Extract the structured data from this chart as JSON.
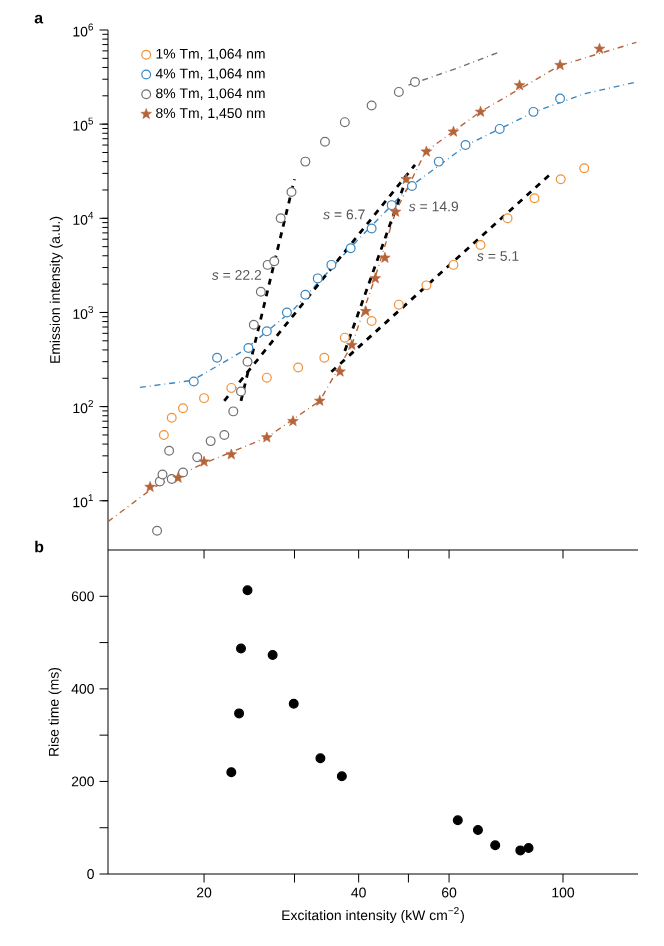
{
  "chart_data": [
    {
      "type": "scatter",
      "ylabel": "Emission intensity (a.u.)",
      "log": "xy",
      "xlim": [
        13,
        140
      ],
      "ylim": [
        3,
        1000000
      ],
      "tick_labels": "y",
      "legend": "top left",
      "xticks": [
        {
          "value": 20,
          "label": null
        },
        {
          "value": 30,
          "label": null
        },
        {
          "value": 40,
          "label": null
        },
        {
          "value": 50,
          "label": null
        },
        {
          "value": 60,
          "label": null
        },
        {
          "value": 100,
          "label": null
        }
      ],
      "yticks": [
        {
          "value": 10,
          "label": "10$^{1}$"
        },
        {
          "value": 100,
          "label": "10$^{2}$"
        },
        {
          "value": 1000,
          "label": "10$^{3}$"
        },
        {
          "value": 10000,
          "label": "10$^{4}$"
        },
        {
          "value": 100000,
          "label": "10$^{5}$"
        },
        {
          "value": 1000000,
          "label": "10$^{6}$"
        }
      ],
      "series": [
        {
          "name": "1% Tm, 1,064 nm",
          "type": "scatter",
          "marker": "circle",
          "color": "#f0913a",
          "x": [
            16.7,
            17.3,
            18.2,
            20,
            22.6,
            26.5,
            30.5,
            34.3,
            37.6,
            42.4,
            47.9,
            54.2,
            61.2,
            69.1,
            78,
            88,
            99,
            110
          ],
          "values": [
            50,
            76,
            96,
            123,
            158,
            203,
            260,
            330,
            540,
            810,
            1210,
            1940,
            3200,
            5200,
            10000,
            16300,
            26000,
            34000
          ]
        },
        {
          "name": "4% Tm, 1,064 nm",
          "type": "scatter",
          "marker": "circle",
          "color": "#3a86c0",
          "x": [
            19.1,
            21.2,
            24.4,
            26.5,
            29,
            31.5,
            33.3,
            35.4,
            38.6,
            42.4,
            46.4,
            50.8,
            57.3,
            64.6,
            75.3,
            87.6,
            98.7
          ],
          "values": [
            185,
            330,
            420,
            630,
            1000,
            1540,
            2300,
            3200,
            4800,
            7800,
            13800,
            22000,
            40000,
            60000,
            89000,
            135000,
            187000
          ]
        },
        {
          "name": "8% Tm, 1,064 nm",
          "type": "scatter",
          "marker": "circle",
          "color": "#707070",
          "x": [
            16.2,
            16.4,
            16.6,
            17.1,
            17.3,
            18.2,
            19.4,
            20.6,
            21.9,
            22.8,
            23.6,
            24.3,
            25,
            25.8,
            26.6,
            27.4,
            28.2,
            29.6,
            31.5,
            34.4,
            37.6,
            42.4,
            47.9,
            51.5
          ],
          "values": [
            4.8,
            16,
            19,
            34,
            17,
            20,
            29,
            43,
            50,
            89,
            145,
            300,
            740,
            1660,
            3200,
            3500,
            10000,
            19000,
            40000,
            65000,
            105000,
            158000,
            220000,
            280000
          ]
        },
        {
          "name": "8% Tm, 1,450 nm",
          "type": "scatter",
          "marker": "star",
          "color": "#b5643a",
          "x": [
            15.7,
            17.8,
            20,
            22.6,
            26.5,
            29.8,
            33.6,
            36.8,
            38.8,
            41.3,
            43.1,
            45,
            47.2,
            49.5,
            54.2,
            61.2,
            69.1,
            82.3,
            98.7,
            117.8
          ],
          "values": [
            14,
            17.5,
            26,
            31,
            47,
            70,
            115,
            235,
            450,
            1030,
            2300,
            3800,
            11700,
            26000,
            51000,
            83000,
            135000,
            258000,
            423000,
            630000
          ]
        },
        {
          "type": "line",
          "line_style": "dashdot",
          "color": "#707070",
          "x": [
            50,
            62,
            75
          ],
          "values": [
            260000,
            390000,
            580000
          ]
        },
        {
          "type": "line",
          "line_style": "dashdot",
          "color": "#3a86c0",
          "x": [
            15,
            19,
            24,
            30,
            38,
            50,
            65,
            88,
            110,
            139
          ],
          "values": [
            160,
            190,
            400,
            1100,
            4500,
            21000,
            60000,
            135000,
            210000,
            280000
          ]
        },
        {
          "type": "line",
          "line_style": "dashdot",
          "color": "#b5643a",
          "x": [
            13,
            16,
            20,
            26.5,
            33.6,
            38.8,
            43,
            47.2,
            54,
            69,
            98.7,
            139
          ],
          "values": [
            6,
            14,
            25,
            47,
            115,
            450,
            2300,
            11700,
            51000,
            135000,
            420000,
            740000
          ]
        },
        {
          "type": "line",
          "line_style": "dashed",
          "color": "#000000",
          "x": [
            23.6,
            30
          ],
          "values": [
            115,
            26000
          ]
        },
        {
          "type": "line",
          "line_style": "dashed",
          "color": "#000000",
          "x": [
            21.9,
            51.5
          ],
          "values": [
            115,
            37000
          ]
        },
        {
          "type": "line",
          "line_style": "dashed",
          "color": "#000000",
          "x": [
            37.6,
            49.5
          ],
          "values": [
            390,
            26000
          ]
        },
        {
          "type": "line",
          "line_style": "dashed",
          "color": "#000000",
          "x": [
            35.4,
            95.5
          ],
          "values": [
            235,
            31000
          ]
        }
      ],
      "annotations": [
        "**a**",
        {
          "text": "*s* = 22.2",
          "x": 26.9,
          "y": 2500
        },
        {
          "text": "*s* = 6.7",
          "x": 42.8,
          "y": 11000
        },
        {
          "text": "*s* = 14.9",
          "x": 47.8,
          "y": 15500
        },
        {
          "text": "*s* = 5.1",
          "x": 64.9,
          "y": 4600
        }
      ]
    },
    {
      "type": "scatter",
      "xlabel": "Excitation intensity (kW cm$^{−2}$)",
      "ylabel": "Rise time (ms)",
      "log": "x",
      "xlim": [
        13,
        140
      ],
      "ylim": [
        0,
        700
      ],
      "marker": "circle",
      "xticks": [
        20,
        {
          "value": 30,
          "label": null
        },
        40,
        {
          "value": 50,
          "label": null
        },
        60,
        100
      ],
      "yticks": [
        0,
        {
          "value": 100,
          "label": null
        },
        200,
        {
          "value": 300,
          "label": null
        },
        400,
        {
          "value": 500,
          "label": null
        },
        600
      ],
      "series": [
        {
          "type": "scatter",
          "color": "#000000",
          "x": [
            22.6,
            23.4,
            23.6,
            24.3,
            27.2,
            29.9,
            33.7,
            37.1,
            62.4,
            68.3,
            73.8,
            82.6,
            85.7
          ],
          "values": [
            220,
            347,
            487,
            613,
            473,
            368,
            250,
            211,
            116,
            95,
            62,
            51,
            56
          ]
        }
      ],
      "annotations": [
        "**b**"
      ]
    }
  ]
}
